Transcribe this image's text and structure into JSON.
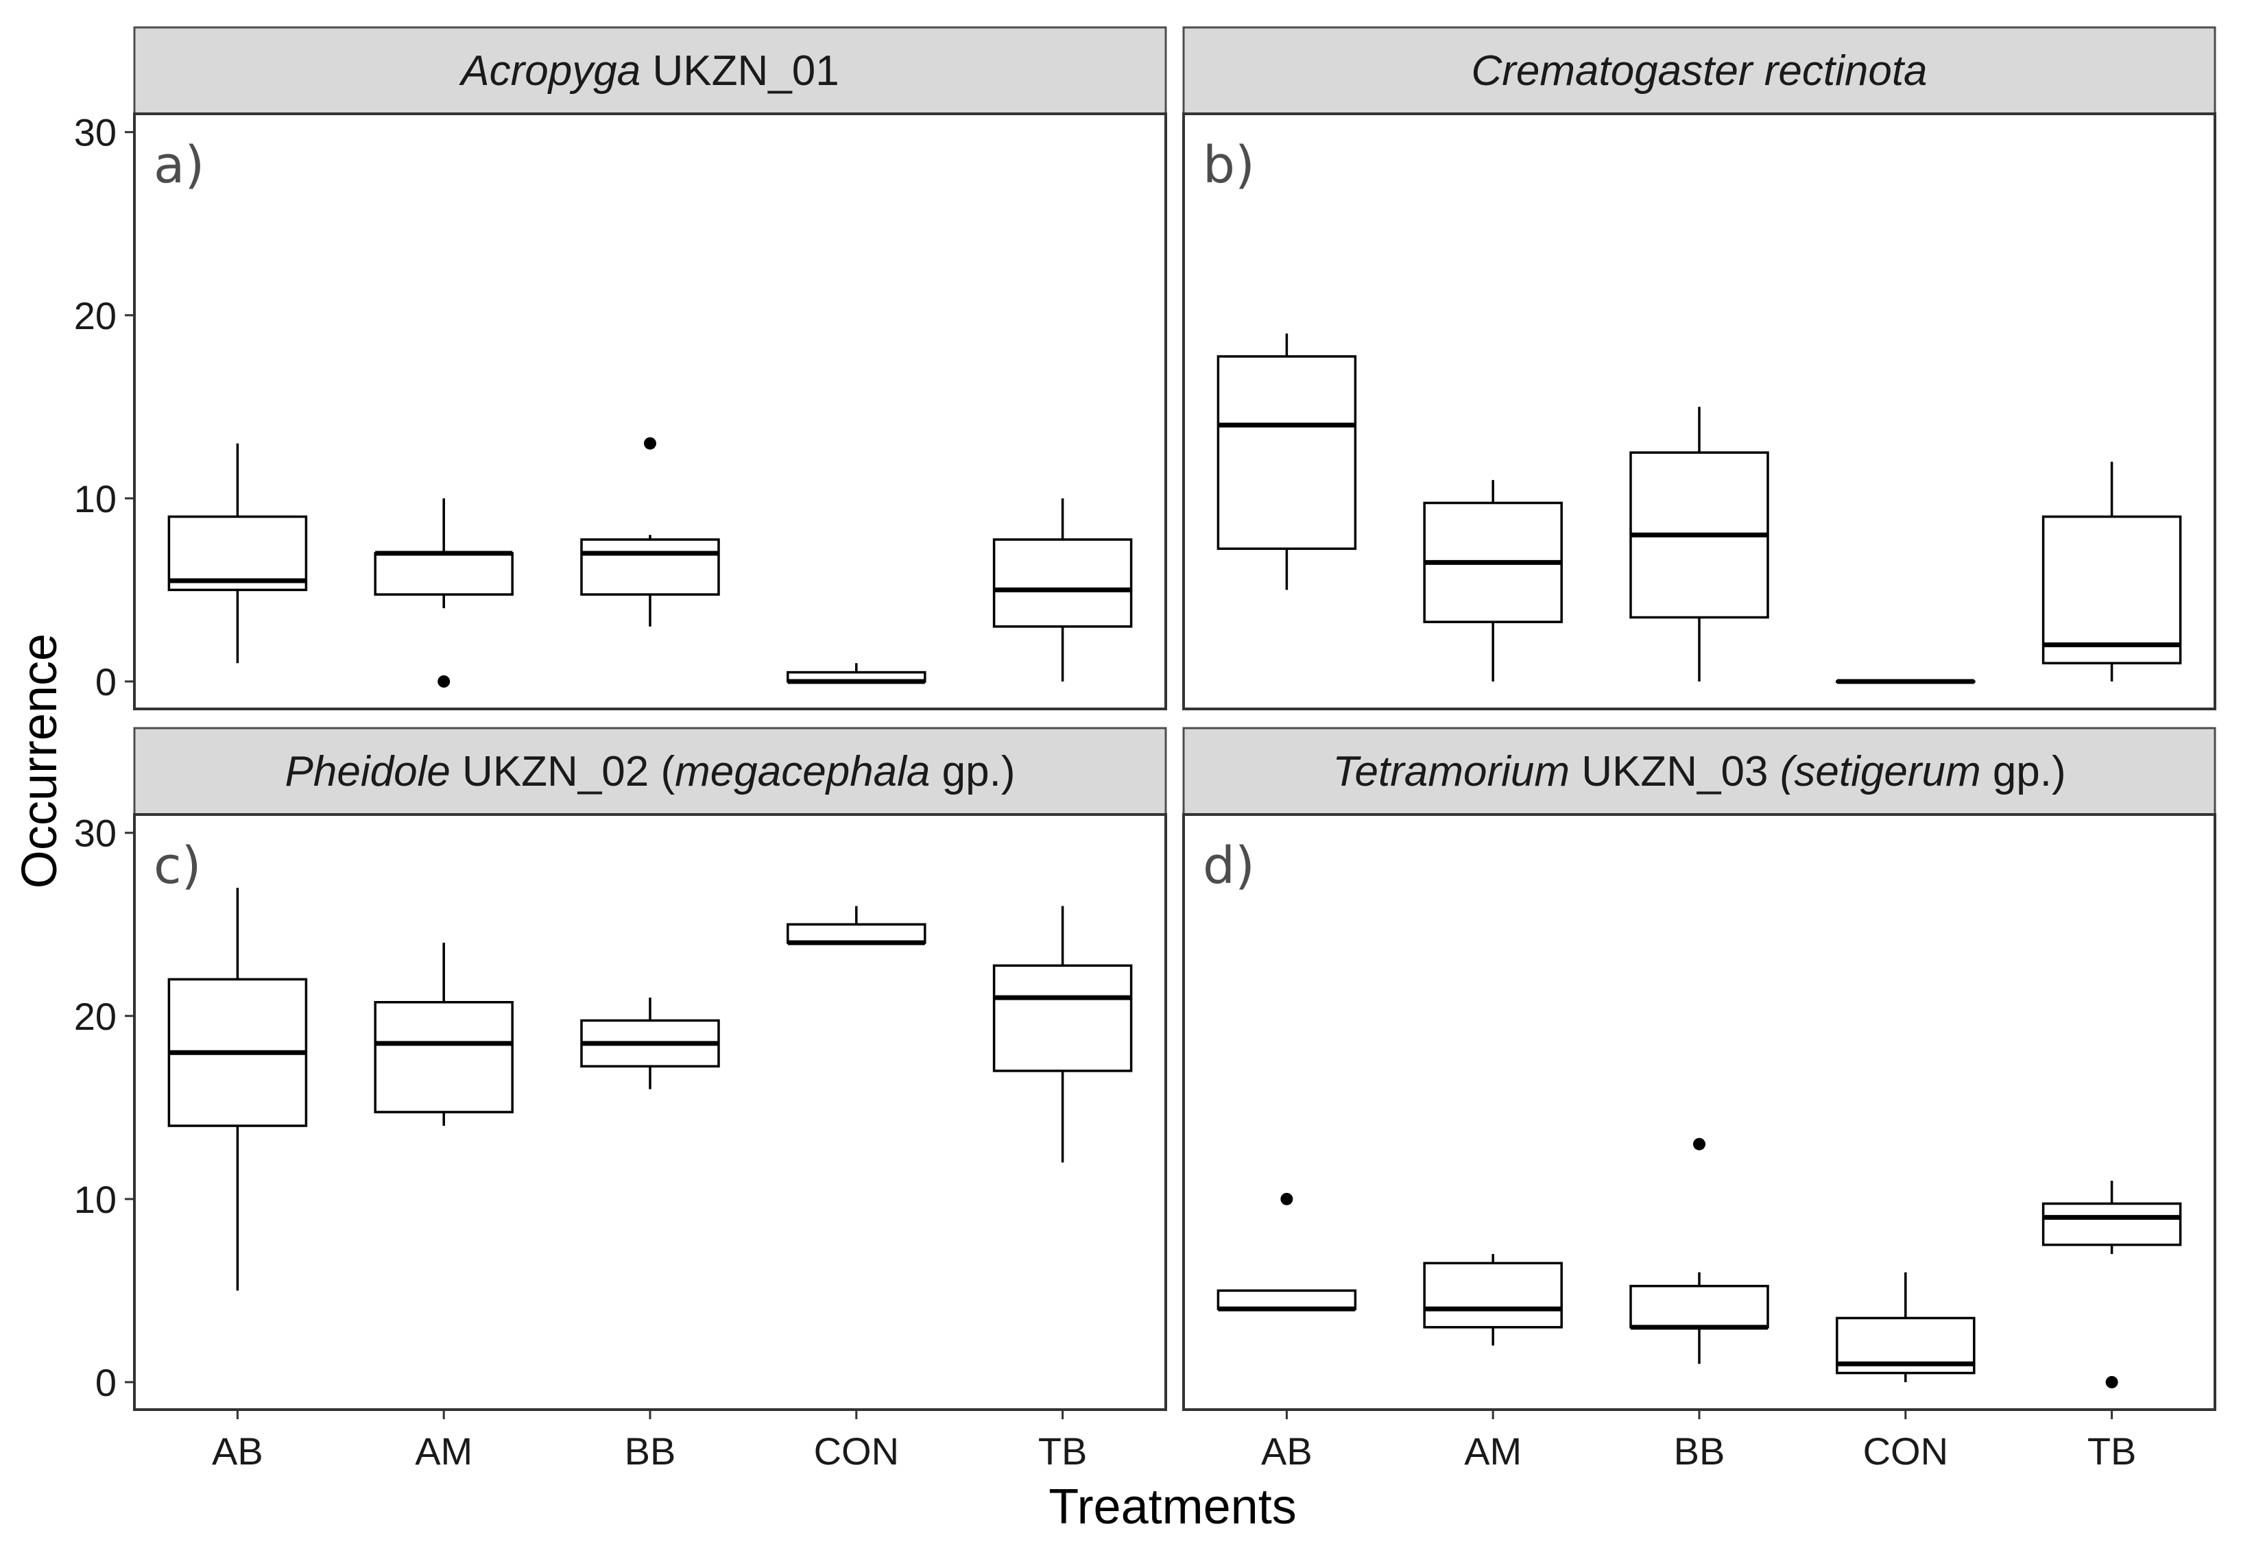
{
  "chart_data": {
    "type": "boxplot",
    "xlabel": "Treatments",
    "ylabel": "Occurrence",
    "categories": [
      "AB",
      "AM",
      "BB",
      "CON",
      "TB"
    ],
    "yticks": [
      0,
      10,
      20,
      30
    ],
    "ylim": [
      -1.5,
      31
    ],
    "panels": [
      {
        "tag": "a)",
        "title_parts": [
          {
            "text": "Acropyga",
            "italic": true
          },
          {
            "text": " UKZN_01",
            "italic": false
          }
        ],
        "boxes": [
          {
            "category": "AB",
            "whisker_low": 1,
            "q1": 5,
            "median": 5.5,
            "q3": 9,
            "whisker_high": 13,
            "outliers": []
          },
          {
            "category": "AM",
            "whisker_low": 4,
            "q1": 4.75,
            "median": 7,
            "q3": 7,
            "whisker_high": 10,
            "outliers": [
              0
            ]
          },
          {
            "category": "BB",
            "whisker_low": 3,
            "q1": 4.75,
            "median": 7,
            "q3": 7.75,
            "whisker_high": 8,
            "outliers": [
              13
            ]
          },
          {
            "category": "CON",
            "whisker_low": 0,
            "q1": 0,
            "median": 0,
            "q3": 0.5,
            "whisker_high": 1,
            "outliers": []
          },
          {
            "category": "TB",
            "whisker_low": 0,
            "q1": 3,
            "median": 5,
            "q3": 7.75,
            "whisker_high": 10,
            "outliers": []
          }
        ]
      },
      {
        "tag": "b)",
        "title_parts": [
          {
            "text": "Crematogaster rectinota",
            "italic": true
          }
        ],
        "boxes": [
          {
            "category": "AB",
            "whisker_low": 5,
            "q1": 7.25,
            "median": 14,
            "q3": 17.75,
            "whisker_high": 19,
            "outliers": []
          },
          {
            "category": "AM",
            "whisker_low": 0,
            "q1": 3.25,
            "median": 6.5,
            "q3": 9.75,
            "whisker_high": 11,
            "outliers": []
          },
          {
            "category": "BB",
            "whisker_low": 0,
            "q1": 3.5,
            "median": 8,
            "q3": 12.5,
            "whisker_high": 15,
            "outliers": []
          },
          {
            "category": "CON",
            "whisker_low": 0,
            "q1": 0,
            "median": 0,
            "q3": 0,
            "whisker_high": 0,
            "outliers": []
          },
          {
            "category": "TB",
            "whisker_low": 0,
            "q1": 1,
            "median": 2,
            "q3": 9,
            "whisker_high": 12,
            "outliers": []
          }
        ]
      },
      {
        "tag": "c)",
        "title_parts": [
          {
            "text": "Pheidole",
            "italic": true
          },
          {
            "text": " UKZN_02 (",
            "italic": false
          },
          {
            "text": "megacephala",
            "italic": true
          },
          {
            "text": " gp.)",
            "italic": false
          }
        ],
        "boxes": [
          {
            "category": "AB",
            "whisker_low": 5,
            "q1": 14,
            "median": 18,
            "q3": 22,
            "whisker_high": 27,
            "outliers": []
          },
          {
            "category": "AM",
            "whisker_low": 14,
            "q1": 14.75,
            "median": 18.5,
            "q3": 20.75,
            "whisker_high": 24,
            "outliers": []
          },
          {
            "category": "BB",
            "whisker_low": 16,
            "q1": 17.25,
            "median": 18.5,
            "q3": 19.75,
            "whisker_high": 21,
            "outliers": []
          },
          {
            "category": "CON",
            "whisker_low": 24,
            "q1": 24,
            "median": 24,
            "q3": 25,
            "whisker_high": 26,
            "outliers": []
          },
          {
            "category": "TB",
            "whisker_low": 12,
            "q1": 17,
            "median": 21,
            "q3": 22.75,
            "whisker_high": 26,
            "outliers": []
          }
        ]
      },
      {
        "tag": "d)",
        "title_parts": [
          {
            "text": "Tetramorium",
            "italic": true
          },
          {
            "text": " UKZN_03 ",
            "italic": false
          },
          {
            "text": "(setigerum",
            "italic": true
          },
          {
            "text": " gp.)",
            "italic": false
          }
        ],
        "boxes": [
          {
            "category": "AB",
            "whisker_low": 4,
            "q1": 4,
            "median": 4,
            "q3": 5,
            "whisker_high": 5,
            "outliers": [
              10
            ]
          },
          {
            "category": "AM",
            "whisker_low": 2,
            "q1": 3,
            "median": 4,
            "q3": 6.5,
            "whisker_high": 7,
            "outliers": []
          },
          {
            "category": "BB",
            "whisker_low": 1,
            "q1": 3,
            "median": 3,
            "q3": 5.25,
            "whisker_high": 6,
            "outliers": [
              13
            ]
          },
          {
            "category": "CON",
            "whisker_low": 0,
            "q1": 0.5,
            "median": 1,
            "q3": 3.5,
            "whisker_high": 6,
            "outliers": []
          },
          {
            "category": "TB",
            "whisker_low": 7,
            "q1": 7.5,
            "median": 9,
            "q3": 9.75,
            "whisker_high": 11,
            "outliers": [
              0
            ]
          }
        ]
      }
    ]
  }
}
